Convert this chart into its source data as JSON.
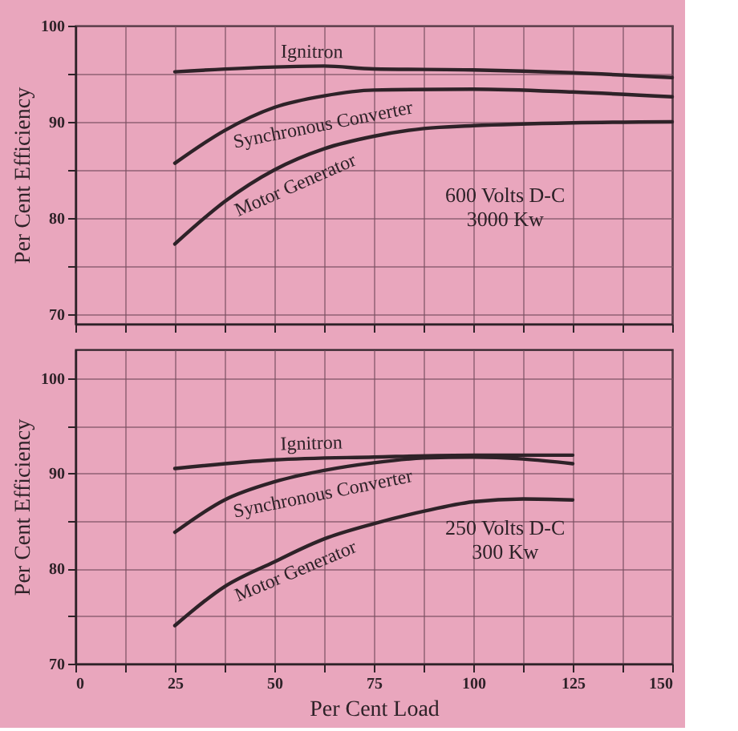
{
  "chart_data": [
    {
      "type": "line",
      "ylabel": "Per Cent Efficiency",
      "xlim": [
        0,
        150
      ],
      "ylim": [
        69,
        100
      ],
      "tick_labels": "y",
      "grid": true,
      "marker": "none",
      "line_style": "solid",
      "xticks": [
        0,
        {
          "value": 12.5,
          "label": null
        },
        25,
        {
          "value": 37.5,
          "label": null
        },
        50,
        {
          "value": 62.5,
          "label": null
        },
        75,
        {
          "value": 87.5,
          "label": null
        },
        100,
        {
          "value": 112.5,
          "label": null
        },
        125,
        {
          "value": 137.5,
          "label": null
        },
        150
      ],
      "yticks": [
        70,
        {
          "value": 75,
          "label": null
        },
        80,
        {
          "value": 85,
          "label": null
        },
        90,
        {
          "value": 95,
          "label": null
        },
        100
      ],
      "annotations": [
        "600 Volts D-C\n3000 Kw"
      ],
      "series": [
        {
          "name": "Ignitron",
          "color": "#2e2228",
          "x": [
            25,
            50,
            62.5,
            75,
            100,
            125,
            150
          ],
          "values": [
            95.2,
            95.7,
            95.8,
            95.5,
            95.4,
            95.1,
            94.6
          ]
        },
        {
          "name": "Synchronous Converter",
          "color": "#2e2228",
          "x": [
            25,
            37.5,
            50,
            62.5,
            75,
            100,
            125,
            150
          ],
          "values": [
            85.7,
            89.1,
            91.5,
            92.7,
            93.3,
            93.4,
            93.1,
            92.6
          ]
        },
        {
          "name": "Motor Generator",
          "color": "#2e2228",
          "x": [
            25,
            37.5,
            50,
            62.5,
            75,
            87.5,
            100,
            125,
            150
          ],
          "values": [
            77.3,
            81.7,
            85,
            87.2,
            88.5,
            89.3,
            89.6,
            89.9,
            90
          ]
        }
      ]
    },
    {
      "type": "line",
      "xlabel": "Per Cent Load",
      "ylabel": "Per Cent Efficiency",
      "xlim": [
        0,
        150
      ],
      "ylim": [
        70,
        103
      ],
      "grid": true,
      "marker": "none",
      "line_style": "solid",
      "xticks": [
        0,
        {
          "value": 12.5,
          "label": null
        },
        25,
        {
          "value": 37.5,
          "label": null
        },
        50,
        {
          "value": 62.5,
          "label": null
        },
        75,
        {
          "value": 87.5,
          "label": null
        },
        100,
        {
          "value": 112.5,
          "label": null
        },
        125,
        {
          "value": 137.5,
          "label": null
        },
        150
      ],
      "yticks": [
        70,
        {
          "value": 75,
          "label": null
        },
        80,
        {
          "value": 85,
          "label": null
        },
        90,
        {
          "value": 95,
          "label": null
        },
        100
      ],
      "annotations": [
        "250 Volts D-C\n300 Kw"
      ],
      "series": [
        {
          "name": "Ignitron",
          "color": "#2e2228",
          "x": [
            25,
            50,
            75,
            100,
            125
          ],
          "values": [
            90.5,
            91.4,
            91.7,
            91.9,
            91.9
          ]
        },
        {
          "name": "Synchronous Converter",
          "color": "#2e2228",
          "x": [
            25,
            37.5,
            50,
            62.5,
            75,
            87.5,
            100,
            112.5,
            125
          ],
          "values": [
            83.8,
            87.2,
            89.1,
            90.3,
            91.1,
            91.6,
            91.7,
            91.5,
            91
          ]
        },
        {
          "name": "Motor Generator",
          "color": "#2e2228",
          "x": [
            25,
            37.5,
            50,
            62.5,
            75,
            87.5,
            100,
            112.5,
            125
          ],
          "values": [
            74,
            78.1,
            80.7,
            83.1,
            84.7,
            86,
            87,
            87.3,
            87.2
          ]
        }
      ]
    }
  ]
}
